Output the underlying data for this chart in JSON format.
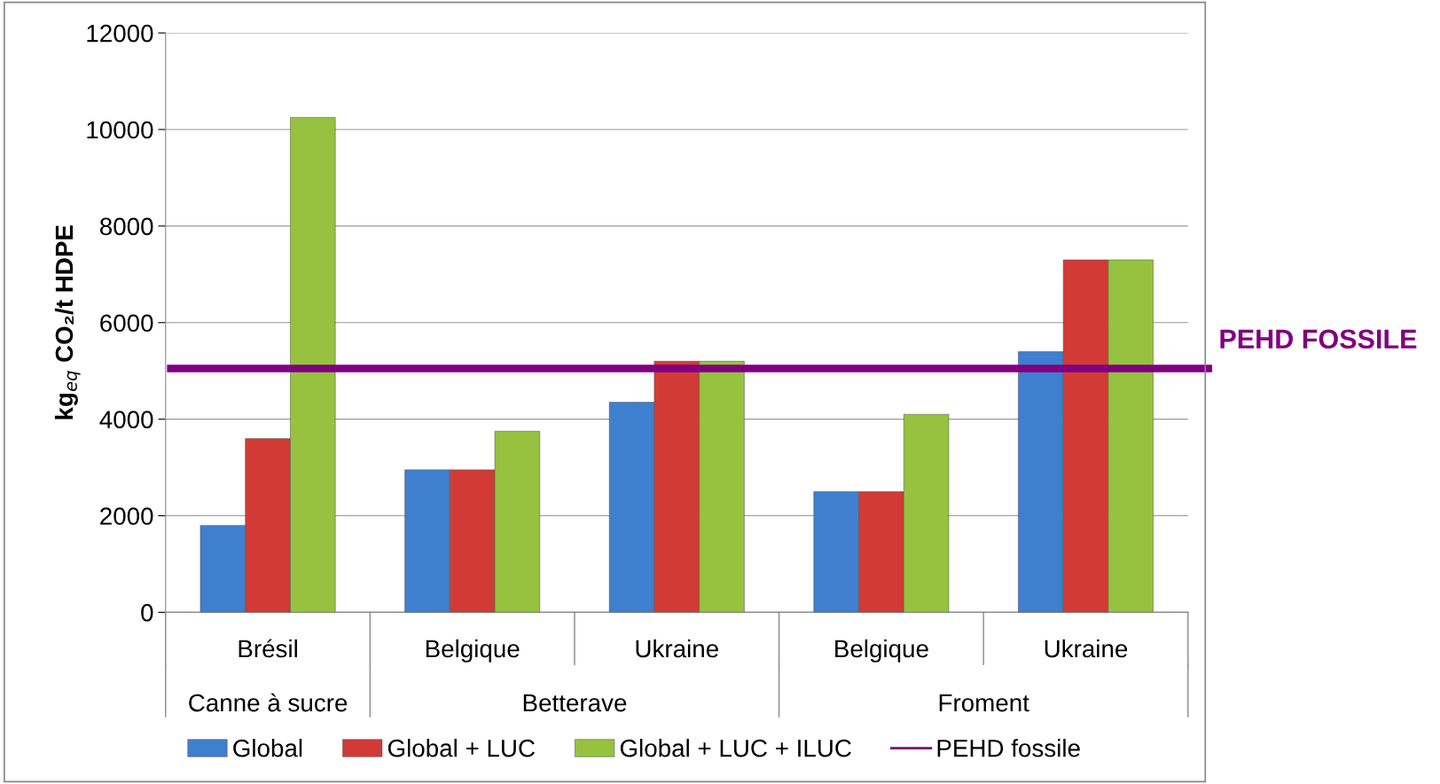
{
  "chart_data": {
    "type": "bar",
    "ylabel": "kg$_{eq}$ CO₂/t HDPE",
    "categories": [
      "Brésil",
      "Belgique",
      "Ukraine",
      "Belgique",
      "Ukraine"
    ],
    "series": [
      {
        "name": "Global",
        "color": "#3f7fcf",
        "values": [
          1800,
          2950,
          4350,
          2500,
          5400
        ]
      },
      {
        "name": "Global + LUC",
        "color": "#d23a36",
        "values": [
          3600,
          2950,
          5200,
          2500,
          7300
        ]
      },
      {
        "name": "Global + LUC + ILUC",
        "color": "#96c23f",
        "values": [
          10250,
          3750,
          5200,
          4100,
          7300
        ]
      }
    ],
    "ref_lines": [
      {
        "axis": "y",
        "value": 5050,
        "label": "PEHD fossile",
        "color": "#800080"
      }
    ],
    "annotations": [
      "Canne à sucre",
      "Betterave",
      "Froment",
      "PEHD FOSSILE"
    ],
    "ylim": [
      0,
      12000
    ],
    "yticks": [
      0,
      2000,
      4000,
      6000,
      8000,
      10000,
      12000
    ],
    "grid": "y",
    "legend": "bottom"
  }
}
